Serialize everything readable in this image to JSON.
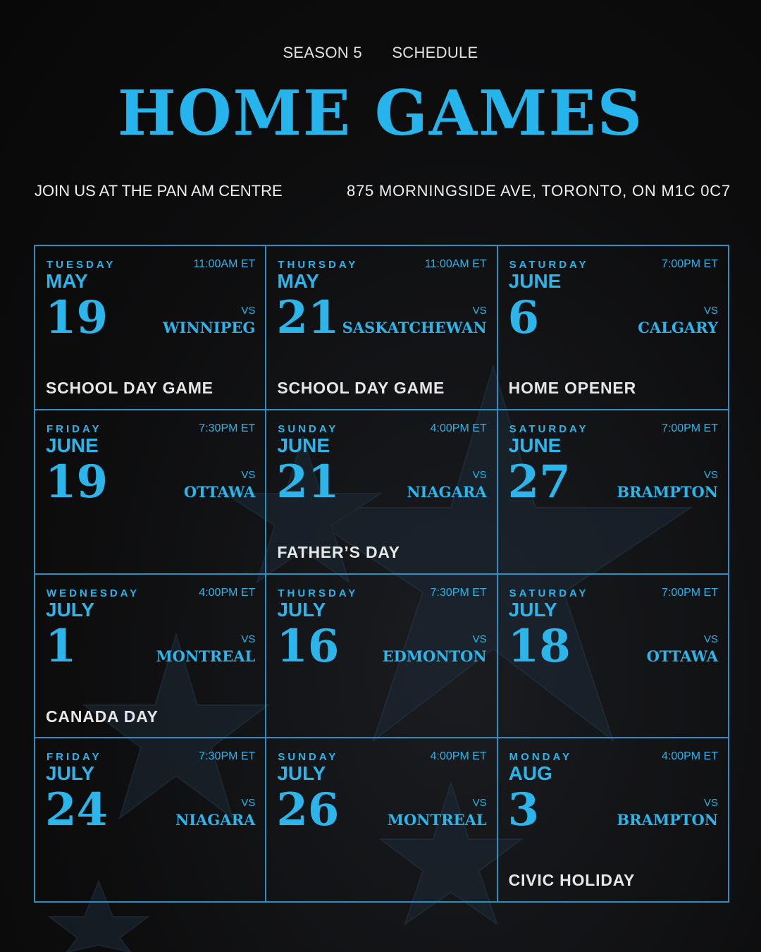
{
  "header": {
    "season": "SEASON 5",
    "schedule": "SCHEDULE",
    "title": "HOME GAMES"
  },
  "venue": {
    "name": "JOIN US AT THE PAN AM CENTRE",
    "address": "875 MORNINGSIDE AVE, TORONTO, ON M1C 0C7"
  },
  "colors": {
    "accent": "#2bb5ea",
    "border": "#2a8fc4",
    "background": "#0b0b0c",
    "note": "#e6e6e6"
  },
  "games": [
    {
      "dow": "TUESDAY",
      "month": "MAY",
      "day": "19",
      "time": "11:00AM ET",
      "vs": "VS",
      "opponent": "WINNIPEG",
      "note": "SCHOOL DAY GAME"
    },
    {
      "dow": "THURSDAY",
      "month": "MAY",
      "day": "21",
      "time": "11:00AM ET",
      "vs": "VS",
      "opponent": "SASKATCHEWAN",
      "note": "SCHOOL DAY GAME"
    },
    {
      "dow": "SATURDAY",
      "month": "JUNE",
      "day": "6",
      "time": "7:00PM ET",
      "vs": "VS",
      "opponent": "CALGARY",
      "note": "HOME OPENER"
    },
    {
      "dow": "FRIDAY",
      "month": "JUNE",
      "day": "19",
      "time": "7:30PM ET",
      "vs": "VS",
      "opponent": "OTTAWA",
      "note": ""
    },
    {
      "dow": "SUNDAY",
      "month": "JUNE",
      "day": "21",
      "time": "4:00PM ET",
      "vs": "VS",
      "opponent": "NIAGARA",
      "note": "FATHER’S DAY"
    },
    {
      "dow": "SATURDAY",
      "month": "JUNE",
      "day": "27",
      "time": "7:00PM ET",
      "vs": "VS",
      "opponent": "BRAMPTON",
      "note": ""
    },
    {
      "dow": "WEDNESDAY",
      "month": "JULY",
      "day": "1",
      "time": "4:00PM ET",
      "vs": "VS",
      "opponent": "MONTREAL",
      "note": "CANADA DAY"
    },
    {
      "dow": "THURSDAY",
      "month": "JULY",
      "day": "16",
      "time": "7:30PM ET",
      "vs": "VS",
      "opponent": "EDMONTON",
      "note": ""
    },
    {
      "dow": "SATURDAY",
      "month": "JULY",
      "day": "18",
      "time": "7:00PM ET",
      "vs": "VS",
      "opponent": "OTTAWA",
      "note": ""
    },
    {
      "dow": "FRIDAY",
      "month": "JULY",
      "day": "24",
      "time": "7:30PM ET",
      "vs": "VS",
      "opponent": "NIAGARA",
      "note": ""
    },
    {
      "dow": "SUNDAY",
      "month": "JULY",
      "day": "26",
      "time": "4:00PM ET",
      "vs": "VS",
      "opponent": "MONTREAL",
      "note": ""
    },
    {
      "dow": "MONDAY",
      "month": "AUG",
      "day": "3",
      "time": "4:00PM ET",
      "vs": "VS",
      "opponent": "BRAMPTON",
      "note": "CIVIC HOLIDAY"
    }
  ]
}
